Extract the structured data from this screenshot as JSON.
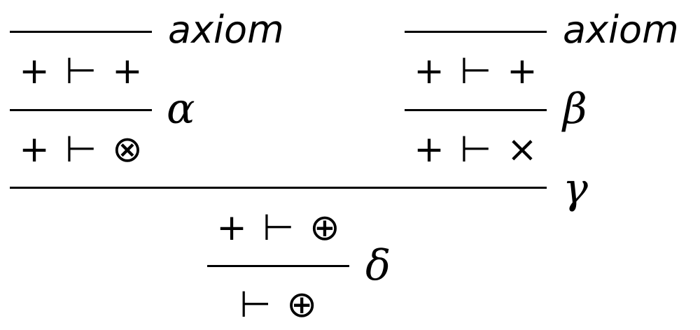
{
  "proof": {
    "left_branch": {
      "axiom_label": "axiom",
      "axiom_conclusion": {
        "left": "+",
        "turnstile": "⊢",
        "right": "+"
      },
      "rule_label": "α",
      "conclusion": {
        "left": "+",
        "turnstile": "⊢",
        "right": "⊗"
      }
    },
    "right_branch": {
      "axiom_label": "axiom",
      "axiom_conclusion": {
        "left": "+",
        "turnstile": "⊢",
        "right": "+"
      },
      "rule_label": "β",
      "conclusion": {
        "left": "+",
        "turnstile": "⊢",
        "right": "×"
      }
    },
    "gamma_step": {
      "rule_label": "γ",
      "conclusion": {
        "left": "+",
        "turnstile": "⊢",
        "right": "⊕"
      }
    },
    "delta_step": {
      "rule_label": "δ",
      "conclusion": {
        "turnstile": "⊢",
        "right": "⊕"
      }
    }
  }
}
